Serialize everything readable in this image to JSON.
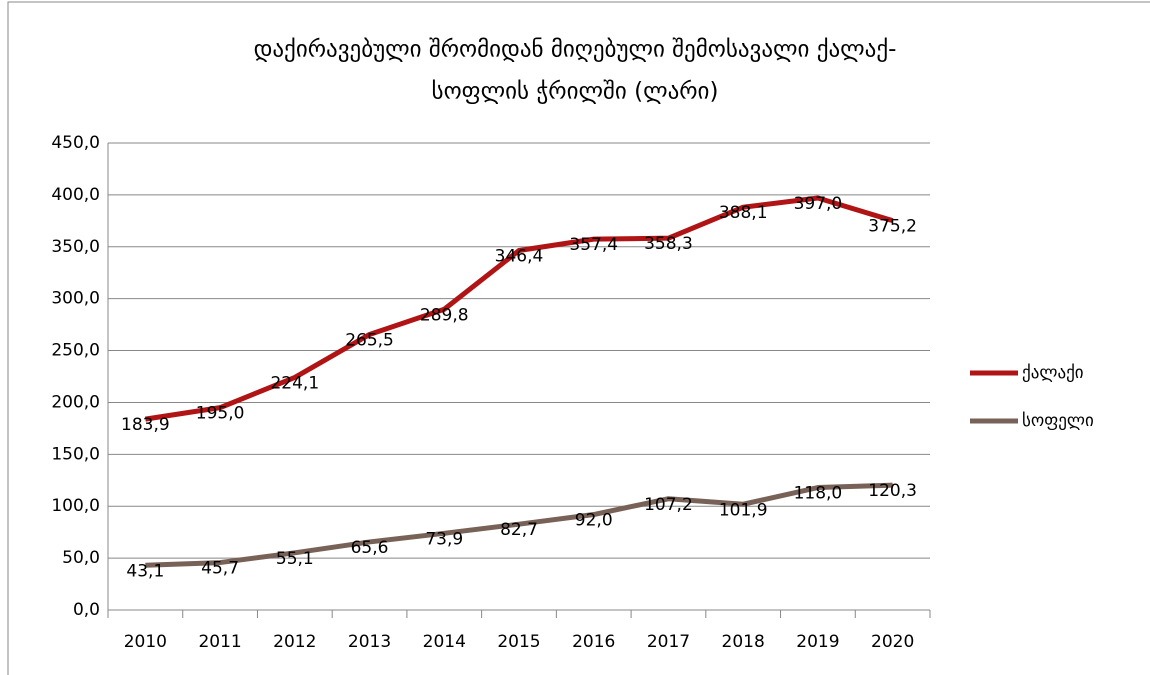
{
  "chart_data": {
    "type": "line",
    "title": [
      "დაქირავებული შრომიდან მიღებული შემოსავალი ქალაქ-",
      "სოფლის ჭრილში (ლარი)"
    ],
    "categories": [
      "2010",
      "2011",
      "2012",
      "2013",
      "2014",
      "2015",
      "2016",
      "2017",
      "2018",
      "2019",
      "2020"
    ],
    "series": [
      {
        "name": "ქალაქი",
        "color": "#b01414",
        "values": [
          183.9,
          195.0,
          224.1,
          265.5,
          289.8,
          346.4,
          357.4,
          358.3,
          388.1,
          397.0,
          375.2
        ],
        "value_labels": [
          "183,9",
          "195,0",
          "224,1",
          "265,5",
          "289,8",
          "346,4",
          "357,4",
          "358,3",
          "388,1",
          "397,0",
          "375,2"
        ]
      },
      {
        "name": "სოფელი",
        "color": "#786258",
        "values": [
          43.1,
          45.7,
          55.1,
          65.6,
          73.9,
          82.7,
          92.0,
          107.2,
          101.9,
          118.0,
          120.3
        ],
        "value_labels": [
          "43,1",
          "45,7",
          "55,1",
          "65,6",
          "73,9",
          "82,7",
          "92,0",
          "107,2",
          "101,9",
          "118,0",
          "120,3"
        ]
      }
    ],
    "ylim": [
      0,
      450
    ],
    "yticks": [
      {
        "value": 0,
        "label": "0,0"
      },
      {
        "value": 50,
        "label": "50,0"
      },
      {
        "value": 100,
        "label": "100,0"
      },
      {
        "value": 150,
        "label": "150,0"
      },
      {
        "value": 200,
        "label": "200,0"
      },
      {
        "value": 250,
        "label": "250,0"
      },
      {
        "value": 300,
        "label": "300,0"
      },
      {
        "value": 350,
        "label": "350,0"
      },
      {
        "value": 400,
        "label": "400,0"
      },
      {
        "value": 450,
        "label": "450,0"
      }
    ],
    "grid": true,
    "legend": "right"
  }
}
